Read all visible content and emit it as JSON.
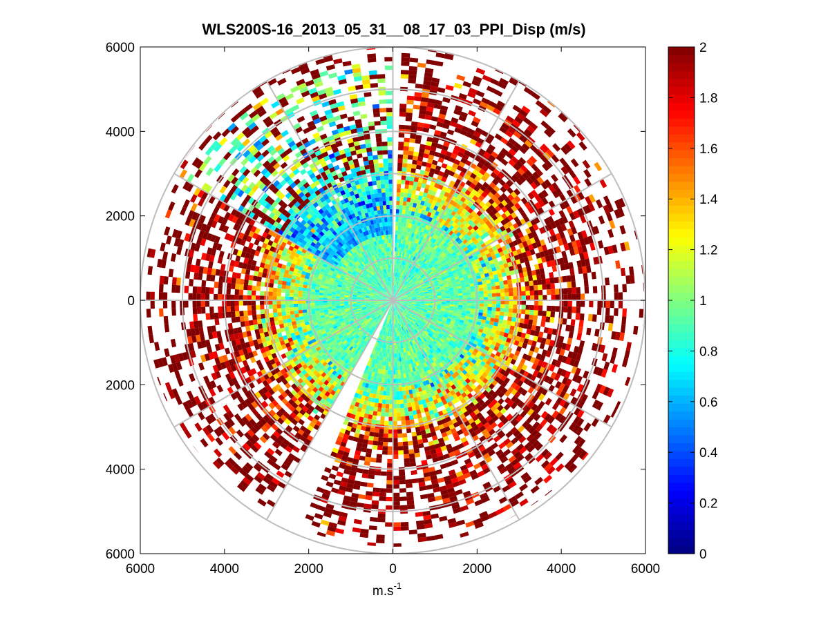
{
  "chart_data": {
    "type": "heatmap",
    "subtype": "polar PPI scan",
    "title": "WLS200S-16_2013_05_31__08_17_03_PPI_Disp (m/s)",
    "xlabel": "m.s",
    "xlabel_superscript": "-1",
    "ylabel": "",
    "xlim": [
      -6000,
      6000
    ],
    "ylim": [
      -6000,
      6000
    ],
    "x_ticks": [
      -6000,
      -4000,
      -2000,
      0,
      2000,
      4000,
      6000
    ],
    "x_tick_labels": [
      "6000",
      "4000",
      "2000",
      "0",
      "2000",
      "4000",
      "6000"
    ],
    "y_ticks": [
      6000,
      4000,
      2000,
      0,
      -2000,
      -4000,
      -6000
    ],
    "y_tick_labels": [
      "6000",
      "4000",
      "2000",
      "0",
      "2000",
      "4000",
      "6000"
    ],
    "range_rings_m": [
      1000,
      2000,
      3000,
      4000,
      5000,
      6000
    ],
    "spoke_step_deg": 30,
    "max_range_m": 6000,
    "colorbar": {
      "colormap": "jet",
      "min": 0,
      "max": 2,
      "ticks": [
        0,
        0.2,
        0.4,
        0.6,
        0.8,
        1,
        1.2,
        1.4,
        1.6,
        1.8,
        2
      ],
      "tick_labels": [
        "0",
        "0.2",
        "0.4",
        "0.6",
        "0.8",
        "1",
        "1.2",
        "1.4",
        "1.6",
        "1.8",
        "2"
      ]
    },
    "value_model": {
      "center_value_near_0m": 0.9,
      "by_range_m": [
        {
          "range": 0,
          "value": 0.9
        },
        {
          "range": 2000,
          "value": 0.95
        },
        {
          "range": 3000,
          "value": 1.4
        },
        {
          "range": 4000,
          "value": 1.9
        },
        {
          "range": 6000,
          "value": 2.0
        }
      ],
      "low_value_sector_deg": [
        300,
        360
      ],
      "low_value_sector_mean": 0.45,
      "data_gap_sectors_deg": [
        [
          359,
          361
        ],
        [
          202,
          208
        ]
      ],
      "noise_sd": 0.25
    }
  }
}
